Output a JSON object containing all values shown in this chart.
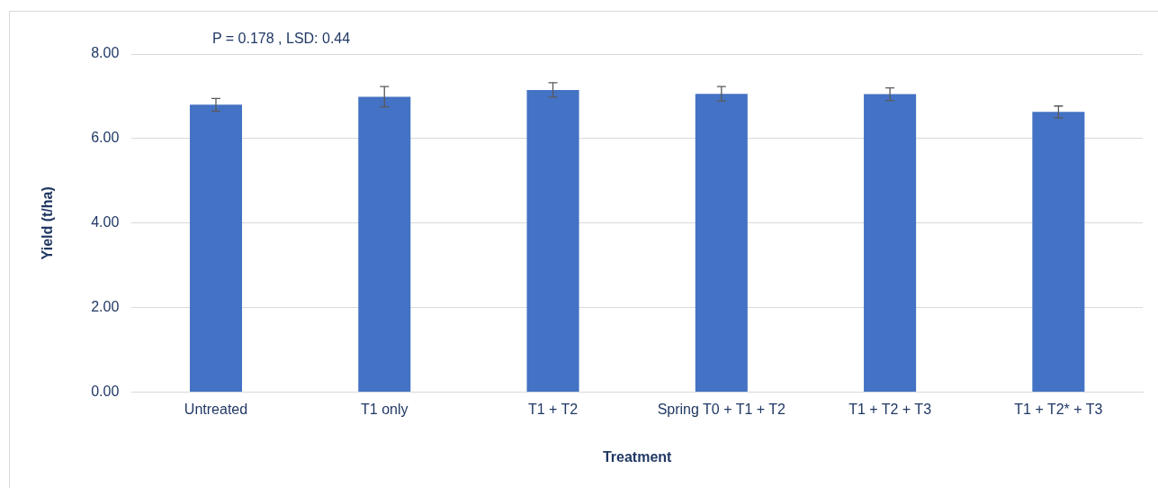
{
  "chart_data": {
    "type": "bar",
    "xlabel": "Treatment",
    "ylabel": "Yield (t/ha)",
    "annotations": [
      "P = 0.178 , LSD: 0.44"
    ],
    "categories": [
      "Untreated",
      "T1 only",
      "T1 + T2",
      "Spring T0 + T1 + T2",
      "T1 + T2 + T3",
      "T1 + T2* + T3"
    ],
    "values": [
      6.8,
      6.99,
      7.15,
      7.06,
      7.05,
      6.63
    ],
    "errors": [
      0.15,
      0.24,
      0.17,
      0.17,
      0.15,
      0.14
    ],
    "color": "#4472c4",
    "ylim": [
      0,
      8
    ],
    "yticks": [
      {
        "value": 0,
        "label": "0.00"
      },
      {
        "value": 2,
        "label": "2.00"
      },
      {
        "value": 4,
        "label": "4.00"
      },
      {
        "value": 6,
        "label": "6.00"
      },
      {
        "value": 8,
        "label": "8.00"
      }
    ],
    "grid": "y",
    "legend": false
  }
}
